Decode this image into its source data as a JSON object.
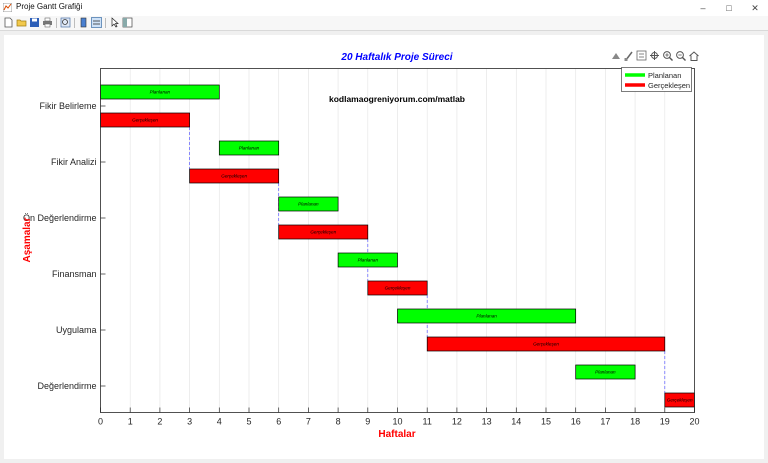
{
  "window": {
    "title": "Proje Gantt Grafiği",
    "controls": [
      "minimize-icon",
      "maximize-icon",
      "close-icon"
    ]
  },
  "toolbar": {
    "icons": [
      "new-figure-icon",
      "open-file-icon",
      "save-icon",
      "print-icon",
      "zoom-icon",
      "colorbar-icon",
      "legend-icon",
      "pointer-icon",
      "property-editor-icon"
    ]
  },
  "axes_toolbar": {
    "icons": [
      "export-icon",
      "brush-icon",
      "data-tips-icon",
      "pan-icon",
      "zoom-in-icon",
      "zoom-out-icon",
      "home-icon"
    ]
  },
  "colors": {
    "planned": "#00ff00",
    "actual": "#ff0000",
    "title": "#0000ff",
    "axis_label": "#ff0000",
    "connector": "#5a5aff"
  },
  "chart_data": {
    "type": "gantt",
    "title": "20 Haftalık Proje Süreci",
    "annotation": "kodlamaogreniyorum.com/matlab",
    "xlabel": "Haftalar",
    "ylabel": "Aşamalar",
    "xlim": [
      0,
      20
    ],
    "xticks": [
      0,
      1,
      2,
      3,
      4,
      5,
      6,
      7,
      8,
      9,
      10,
      11,
      12,
      13,
      14,
      15,
      16,
      17,
      18,
      19,
      20
    ],
    "grid": "x",
    "legend": {
      "position": "top-right",
      "entries": [
        {
          "label": "Planlanan",
          "color": "#00ff00"
        },
        {
          "label": "Gerçekleşen",
          "color": "#ff0000"
        }
      ]
    },
    "tasks": [
      {
        "name": "Fikir Belirleme",
        "planned": [
          0,
          4
        ],
        "actual": [
          0,
          3
        ],
        "planned_label": "Planlanan",
        "actual_label": "Gerçekleşen"
      },
      {
        "name": "Fikir Analizi",
        "planned": [
          4,
          6
        ],
        "actual": [
          3,
          6
        ],
        "planned_label": "Planlanan",
        "actual_label": "Gerçekleşen"
      },
      {
        "name": "Ön Değerlendirme",
        "planned": [
          6,
          8
        ],
        "actual": [
          6,
          9
        ],
        "planned_label": "Planlanan",
        "actual_label": "Gerçekleşen"
      },
      {
        "name": "Finansman",
        "planned": [
          8,
          10
        ],
        "actual": [
          9,
          11
        ],
        "planned_label": "Planlanan",
        "actual_label": "Gerçekleşen"
      },
      {
        "name": "Uygulama",
        "planned": [
          10,
          16
        ],
        "actual": [
          11,
          19
        ],
        "planned_label": "Planlanan",
        "actual_label": "Gerçekleşen"
      },
      {
        "name": "Değerlendirme",
        "planned": [
          16,
          18
        ],
        "actual": [
          19,
          20
        ],
        "planned_label": "Planlanan",
        "actual_label": "Gerçekleşen"
      }
    ]
  }
}
